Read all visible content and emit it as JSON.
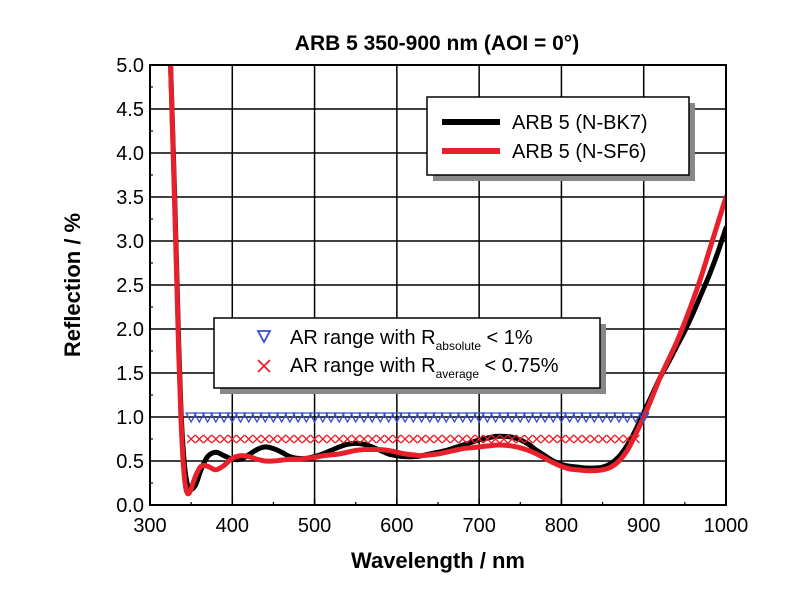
{
  "chart_data": {
    "type": "line",
    "title": "ARB 5 350-900 nm (AOI = 0°)",
    "xlabel": "Wavelength / nm",
    "ylabel": "Reflection / %",
    "xlim": [
      300,
      1000
    ],
    "ylim": [
      0,
      5
    ],
    "xticks": [
      "300",
      "400",
      "500",
      "600",
      "700",
      "800",
      "900",
      "1000"
    ],
    "yticks": [
      "0.0",
      "0.5",
      "1.0",
      "1.5",
      "2.0",
      "2.5",
      "3.0",
      "3.5",
      "4.0",
      "4.5",
      "5.0"
    ],
    "grid": true,
    "series": [
      {
        "name": "ARB 5 (N-BK7)",
        "color": "#000000",
        "x": [
          325,
          330,
          335,
          338,
          341,
          344,
          348,
          355,
          362,
          370,
          380,
          390,
          400,
          410,
          420,
          430,
          440,
          450,
          460,
          470,
          480,
          490,
          500,
          510,
          520,
          530,
          540,
          550,
          560,
          570,
          580,
          590,
          600,
          610,
          620,
          630,
          640,
          650,
          660,
          670,
          680,
          690,
          700,
          710,
          720,
          730,
          740,
          750,
          760,
          770,
          780,
          790,
          800,
          810,
          820,
          830,
          840,
          850,
          860,
          870,
          880,
          890,
          900,
          910,
          920,
          930,
          940,
          950,
          960,
          970,
          980,
          990,
          1000
        ],
        "y": [
          5.0,
          3.5,
          1.8,
          1.0,
          0.55,
          0.3,
          0.18,
          0.22,
          0.4,
          0.55,
          0.6,
          0.56,
          0.52,
          0.52,
          0.57,
          0.63,
          0.66,
          0.64,
          0.6,
          0.55,
          0.53,
          0.53,
          0.55,
          0.58,
          0.62,
          0.66,
          0.69,
          0.7,
          0.69,
          0.66,
          0.62,
          0.58,
          0.56,
          0.55,
          0.55,
          0.56,
          0.58,
          0.6,
          0.62,
          0.65,
          0.68,
          0.71,
          0.74,
          0.76,
          0.78,
          0.78,
          0.77,
          0.74,
          0.69,
          0.62,
          0.56,
          0.5,
          0.46,
          0.44,
          0.43,
          0.42,
          0.42,
          0.43,
          0.47,
          0.55,
          0.68,
          0.85,
          1.05,
          1.25,
          1.45,
          1.62,
          1.8,
          1.98,
          2.18,
          2.4,
          2.62,
          2.87,
          3.15
        ]
      },
      {
        "name": "ARB 5 (N-SF6)",
        "color": "#e8202c",
        "x": [
          325,
          330,
          335,
          338,
          341,
          344,
          348,
          355,
          362,
          370,
          380,
          390,
          400,
          410,
          420,
          430,
          440,
          450,
          460,
          470,
          480,
          490,
          500,
          510,
          520,
          530,
          540,
          550,
          560,
          570,
          580,
          590,
          600,
          610,
          620,
          630,
          640,
          650,
          660,
          670,
          680,
          690,
          700,
          710,
          720,
          730,
          740,
          750,
          760,
          770,
          780,
          790,
          800,
          810,
          820,
          830,
          840,
          850,
          860,
          870,
          880,
          890,
          900,
          910,
          920,
          930,
          940,
          950,
          960,
          970,
          980,
          990,
          1000
        ],
        "y": [
          5.0,
          3.4,
          1.7,
          0.9,
          0.4,
          0.17,
          0.14,
          0.32,
          0.44,
          0.44,
          0.4,
          0.45,
          0.53,
          0.56,
          0.55,
          0.52,
          0.5,
          0.5,
          0.51,
          0.52,
          0.52,
          0.53,
          0.54,
          0.56,
          0.57,
          0.58,
          0.6,
          0.62,
          0.63,
          0.63,
          0.63,
          0.62,
          0.6,
          0.58,
          0.57,
          0.56,
          0.57,
          0.58,
          0.6,
          0.62,
          0.64,
          0.65,
          0.66,
          0.67,
          0.68,
          0.68,
          0.67,
          0.65,
          0.62,
          0.58,
          0.53,
          0.48,
          0.44,
          0.41,
          0.4,
          0.39,
          0.39,
          0.4,
          0.43,
          0.5,
          0.62,
          0.8,
          1.0,
          1.22,
          1.45,
          1.65,
          1.85,
          2.08,
          2.33,
          2.6,
          2.9,
          3.2,
          3.5
        ]
      }
    ],
    "markers": [
      {
        "label_main": "AR range with R",
        "label_sub": "absolute",
        "label_tail": " < 1%",
        "symbol": "triangle-down",
        "color": "#3850c8",
        "y": 1.0,
        "x": [
          350,
          360,
          370,
          380,
          390,
          400,
          410,
          420,
          430,
          440,
          450,
          460,
          470,
          480,
          490,
          500,
          510,
          520,
          530,
          540,
          550,
          560,
          570,
          580,
          590,
          600,
          610,
          620,
          630,
          640,
          650,
          660,
          670,
          680,
          690,
          700,
          710,
          720,
          730,
          740,
          750,
          760,
          770,
          780,
          790,
          800,
          810,
          820,
          830,
          840,
          850,
          860,
          870,
          880,
          890,
          900
        ]
      },
      {
        "label_main": "AR range with R",
        "label_sub": "average",
        "label_tail": " < 0.75%",
        "symbol": "x",
        "color": "#e8202c",
        "y": 0.75,
        "x": [
          350,
          360,
          370,
          380,
          390,
          400,
          410,
          420,
          430,
          440,
          450,
          460,
          470,
          480,
          490,
          500,
          510,
          520,
          530,
          540,
          550,
          560,
          570,
          580,
          590,
          600,
          610,
          620,
          630,
          640,
          650,
          660,
          670,
          680,
          690,
          700,
          710,
          720,
          730,
          740,
          750,
          760,
          770,
          780,
          790,
          800,
          810,
          820,
          830,
          840,
          850,
          860,
          870,
          880,
          890
        ]
      }
    ],
    "legend_position": "top-right",
    "marker_legend_position": "middle"
  }
}
